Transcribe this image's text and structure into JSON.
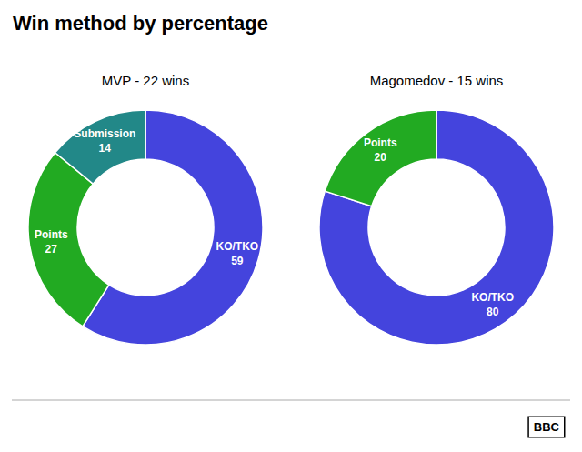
{
  "chart_data": [
    {
      "type": "pie",
      "title": "Win method by percentage",
      "subtitle": "MVP - 22 wins",
      "categories": [
        "KO/TKO",
        "Points",
        "Submission"
      ],
      "values": [
        59,
        27,
        14
      ],
      "colors": [
        "#4444dd",
        "#22aa22",
        "#228888"
      ],
      "data_labels": true,
      "legend": false
    },
    {
      "type": "pie",
      "subtitle": "Magomedov - 15 wins",
      "categories": [
        "KO/TKO",
        "Points"
      ],
      "values": [
        80,
        20
      ],
      "colors": [
        "#4444dd",
        "#22aa22"
      ],
      "data_labels": true,
      "legend": false,
      "annotations": [
        "BBC"
      ]
    }
  ]
}
